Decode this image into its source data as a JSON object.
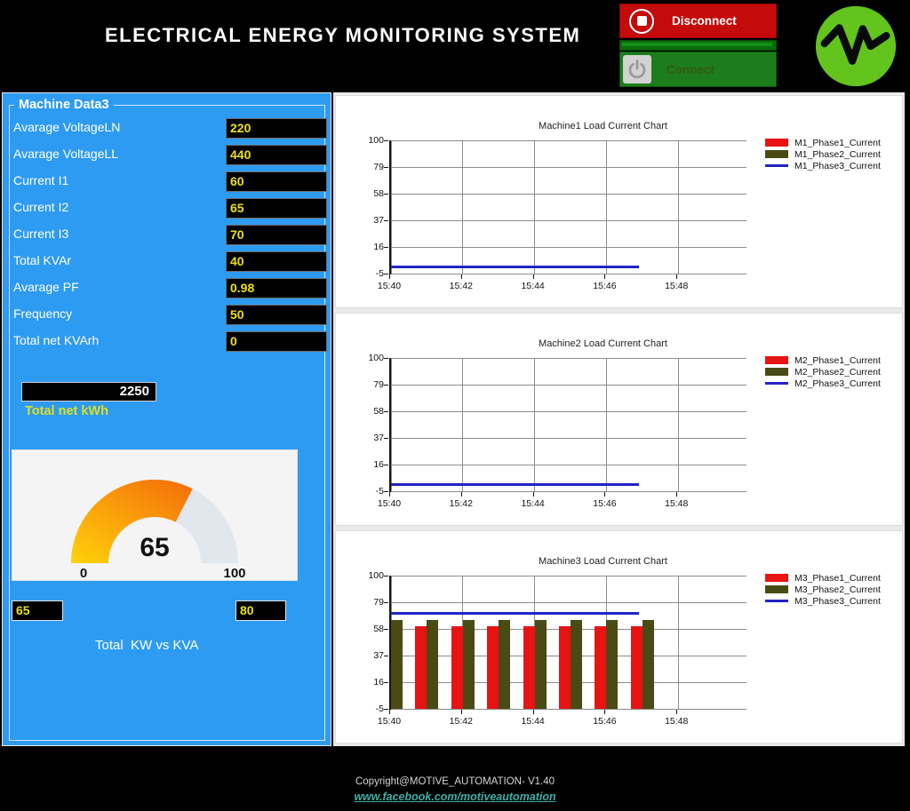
{
  "header": {
    "title": "ELECTRICAL ENERGY MONITORING SYSTEM",
    "disconnect_label": "Disconnect",
    "connect_label": "Connect"
  },
  "machine_panel": {
    "title": "Machine Data3",
    "rows": [
      {
        "label": "Avarage VoltageLN",
        "value": "220"
      },
      {
        "label": "Avarage VoltageLL",
        "value": "440"
      },
      {
        "label": "Current I1",
        "value": "60"
      },
      {
        "label": "Current I2",
        "value": "65"
      },
      {
        "label": "Current I3",
        "value": "70"
      },
      {
        "label": "Total KVAr",
        "value": "40"
      },
      {
        "label": "Avarage PF",
        "value": "0.98"
      },
      {
        "label": "Frequency",
        "value": "50"
      },
      {
        "label": "Total net KVArh",
        "value": "0"
      }
    ],
    "total_net_kwh_value": "2250",
    "total_net_kwh_label": "Total net kWh",
    "gauge": {
      "value": 65,
      "min": 0,
      "max": 100,
      "min_label": "0",
      "max_label": "100"
    },
    "kw_value": "65",
    "kva_value": "80",
    "kw_kva_label": "Total  KW vs KVA"
  },
  "chart_data": [
    {
      "type": "line",
      "title": "Machine1 Load Current Chart",
      "ylim": [
        -5,
        100
      ],
      "y_ticks": [
        100,
        79,
        58,
        37,
        16,
        -5
      ],
      "x_ticks": [
        "15:40",
        "15:42",
        "15:44",
        "15:46",
        "15:48"
      ],
      "x_tick_minutes": [
        0,
        2,
        4,
        6,
        8
      ],
      "x_range_minutes": [
        0,
        9.9
      ],
      "grid": true,
      "legend_position": "right",
      "series": [
        {
          "name": "M1_Phase1_Current",
          "style": "bar",
          "color": "#e81313",
          "x_minutes": [],
          "values": []
        },
        {
          "name": "M1_Phase2_Current",
          "style": "bar",
          "color": "#4a4a15",
          "x_minutes": [],
          "values": []
        },
        {
          "name": "M1_Phase3_Current",
          "style": "line",
          "color": "#2323c8",
          "x_minutes": [
            0,
            6.9
          ],
          "values": [
            0,
            0
          ]
        }
      ]
    },
    {
      "type": "line",
      "title": "Machine2 Load Current Chart",
      "ylim": [
        -5,
        100
      ],
      "y_ticks": [
        100,
        79,
        58,
        37,
        16,
        -5
      ],
      "x_ticks": [
        "15:40",
        "15:42",
        "15:44",
        "15:46",
        "15:48"
      ],
      "x_tick_minutes": [
        0,
        2,
        4,
        6,
        8
      ],
      "x_range_minutes": [
        0,
        9.9
      ],
      "grid": true,
      "legend_position": "right",
      "series": [
        {
          "name": "M2_Phase1_Current",
          "style": "bar",
          "color": "#e81313",
          "x_minutes": [],
          "values": []
        },
        {
          "name": "M2_Phase2_Current",
          "style": "bar",
          "color": "#4a4a15",
          "x_minutes": [],
          "values": []
        },
        {
          "name": "M2_Phase3_Current",
          "style": "line",
          "color": "#2323c8",
          "x_minutes": [
            0,
            6.9
          ],
          "values": [
            0,
            0
          ]
        }
      ]
    },
    {
      "type": "bar",
      "title": "Machine3 Load Current Chart",
      "ylim": [
        -5,
        100
      ],
      "y_ticks": [
        100,
        79,
        58,
        37,
        16,
        -5
      ],
      "x_ticks": [
        "15:40",
        "15:42",
        "15:44",
        "15:46",
        "15:48"
      ],
      "x_tick_minutes": [
        0,
        2,
        4,
        6,
        8
      ],
      "x_range_minutes": [
        0,
        9.9
      ],
      "grid": true,
      "legend_position": "right",
      "series": [
        {
          "name": "M3_Phase1_Current",
          "style": "bar",
          "color": "#e81313",
          "x_minutes": [
            1,
            2,
            3,
            4,
            5,
            6,
            7
          ],
          "values": [
            60,
            60,
            60,
            60,
            60,
            60,
            60
          ]
        },
        {
          "name": "M3_Phase2_Current",
          "style": "bar",
          "color": "#4a4a15",
          "x_minutes": [
            0,
            1,
            2,
            3,
            4,
            5,
            6,
            7
          ],
          "values": [
            65,
            65,
            65,
            65,
            65,
            65,
            65,
            65
          ]
        },
        {
          "name": "M3_Phase3_Current",
          "style": "line",
          "color": "#2323c8",
          "x_minutes": [
            0,
            6.9
          ],
          "values": [
            70,
            70
          ]
        }
      ]
    }
  ],
  "footer": {
    "copyright": "Copyright@MOTIVE_AUTOMATION- V1.40",
    "link": "www.facebook.com/motiveautomation"
  },
  "colors": {
    "panel_blue": "#2e9bf2",
    "value_yellow": "#ece01a",
    "kwh_label_yellow": "#dde01e",
    "disconnect_red": "#c40a0a",
    "connect_green": "#1b7e1b",
    "logo_green": "#62c41c",
    "gauge_fill_start": "#ffd20a",
    "gauge_fill_end": "#f5730a",
    "gauge_track": "#e2e7ed",
    "series_red": "#e81313",
    "series_olive": "#4a4a15",
    "series_blue": "#2323c8",
    "footer_link_teal": "#3fb0a8"
  }
}
